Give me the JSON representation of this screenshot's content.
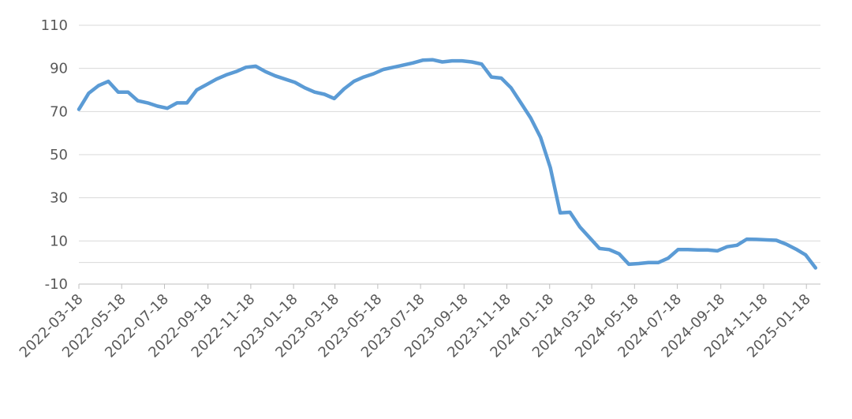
{
  "chart_data": {
    "type": "line",
    "x": [
      "2022-03-18",
      "2022-04-01",
      "2022-04-15",
      "2022-04-29",
      "2022-05-13",
      "2022-05-27",
      "2022-06-10",
      "2022-06-24",
      "2022-07-08",
      "2022-07-22",
      "2022-08-05",
      "2022-08-19",
      "2022-09-02",
      "2022-09-16",
      "2022-09-30",
      "2022-10-14",
      "2022-10-28",
      "2022-11-11",
      "2022-11-25",
      "2022-12-09",
      "2022-12-23",
      "2023-01-06",
      "2023-01-20",
      "2023-02-03",
      "2023-02-17",
      "2023-03-03",
      "2023-03-17",
      "2023-03-31",
      "2023-04-14",
      "2023-04-28",
      "2023-05-12",
      "2023-05-26",
      "2023-06-09",
      "2023-06-23",
      "2023-07-07",
      "2023-07-21",
      "2023-08-04",
      "2023-08-18",
      "2023-09-01",
      "2023-09-15",
      "2023-09-29",
      "2023-10-13",
      "2023-10-27",
      "2023-11-10",
      "2023-11-24",
      "2023-12-08",
      "2023-12-22",
      "2024-01-05",
      "2024-01-19",
      "2024-02-02",
      "2024-02-16",
      "2024-03-01",
      "2024-03-15",
      "2024-03-29",
      "2024-04-12",
      "2024-04-26",
      "2024-05-10",
      "2024-05-24",
      "2024-06-07",
      "2024-06-21",
      "2024-07-05",
      "2024-07-19",
      "2024-08-02",
      "2024-08-16",
      "2024-08-30",
      "2024-09-13",
      "2024-09-27",
      "2024-10-11",
      "2024-10-25",
      "2024-11-08",
      "2024-11-22",
      "2024-12-06",
      "2024-12-20",
      "2025-01-03",
      "2025-01-17",
      "2025-01-31"
    ],
    "series": [
      {
        "color": "#5b9bd5",
        "values": [
          71,
          78.5,
          82,
          84,
          79,
          79,
          75,
          74,
          72.5,
          71.5,
          74,
          74,
          80,
          82.5,
          85,
          87,
          88.5,
          90.5,
          91,
          88.5,
          86.5,
          85,
          83.5,
          81,
          79,
          78,
          76,
          80.5,
          84,
          86,
          87.5,
          89.5,
          90.5,
          91.5,
          92.5,
          93.8,
          94,
          93,
          93.5,
          93.5,
          93,
          92,
          86,
          85.5,
          81,
          74,
          67,
          58,
          44,
          23,
          23.3,
          16.5,
          11.5,
          6.5,
          6,
          4,
          -0.8,
          -0.5,
          0,
          0,
          2,
          6,
          6,
          5.8,
          5.8,
          5.4,
          7.3,
          8,
          10.8,
          10.7,
          10.5,
          10.3,
          8.5,
          6.2,
          3.5,
          -2.5
        ]
      }
    ],
    "xlim": [
      "2022-03-18",
      "2025-02-07"
    ],
    "xticks": [
      "2022-03-18",
      "2022-05-18",
      "2022-07-18",
      "2022-09-18",
      "2022-11-18",
      "2023-01-18",
      "2023-03-18",
      "2023-05-18",
      "2023-07-18",
      "2023-09-18",
      "2023-11-18",
      "2024-01-18",
      "2024-03-18",
      "2024-05-18",
      "2024-07-18",
      "2024-09-18",
      "2024-11-18",
      "2025-01-18"
    ],
    "ylim": [
      -10,
      110
    ],
    "yticks": [
      -10,
      10,
      30,
      50,
      70,
      90,
      110
    ],
    "grid": true
  }
}
